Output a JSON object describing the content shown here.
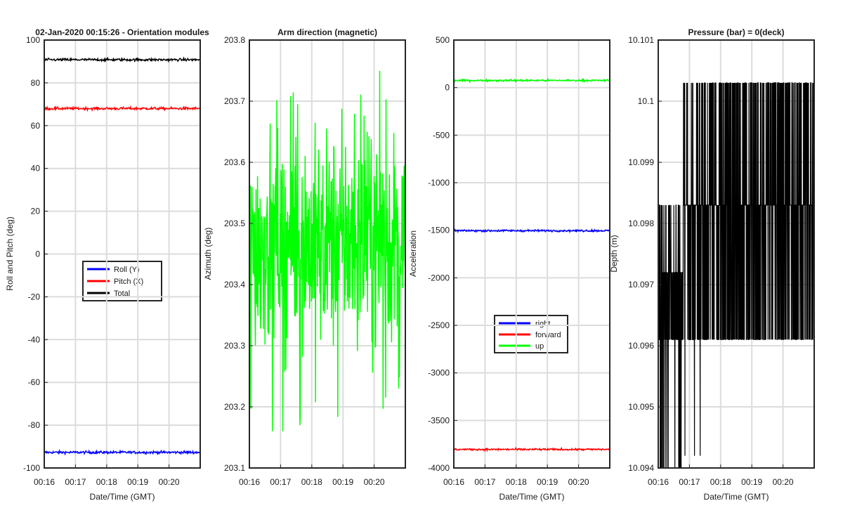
{
  "chart_data": [
    {
      "type": "line",
      "title": "02-Jan-2020 00:15:26 - Orientation modules",
      "xlabel": "Date/Time (GMT)",
      "ylabel": "Roll and Pitch (deg)",
      "x_range_minutes": [
        16.0,
        21.0
      ],
      "ylim": [
        -100,
        100
      ],
      "yticks": [
        -100,
        -80,
        -60,
        -40,
        -20,
        0,
        20,
        40,
        60,
        80,
        100
      ],
      "xtick_labels": [
        "00:16",
        "00:17",
        "00:18",
        "00:19",
        "00:20"
      ],
      "grid": true,
      "legend_position": "center",
      "series": [
        {
          "name": "Roll (Y)",
          "color": "#0000ff",
          "value": -92.7,
          "noise": 0.3
        },
        {
          "name": "Pitch (X)",
          "color": "#ff0000",
          "value": 68.0,
          "noise": 0.3
        },
        {
          "name": "Total",
          "color": "#000000",
          "value": 90.8,
          "noise": 0.3
        }
      ]
    },
    {
      "type": "line",
      "title": "Arm direction (magnetic)",
      "xlabel": "",
      "ylabel": "Azimuth (deg)",
      "x_range_minutes": [
        16.0,
        21.0
      ],
      "ylim": [
        203.1,
        203.8
      ],
      "yticks": [
        203.1,
        203.2,
        203.3,
        203.4,
        203.5,
        203.6,
        203.7,
        203.8
      ],
      "xtick_labels": [
        "00:16",
        "00:17",
        "00:18",
        "00:19",
        "00:20"
      ],
      "grid": true,
      "series": [
        {
          "name": "",
          "color": "#00ff00",
          "mean": 203.47,
          "range": [
            203.16,
            203.8
          ]
        }
      ]
    },
    {
      "type": "line",
      "title": "",
      "xlabel": "Date/Time (GMT)",
      "ylabel": "Acceleration",
      "x_range_minutes": [
        16.0,
        21.0
      ],
      "ylim": [
        -4000,
        500
      ],
      "yticks": [
        -4000,
        -3500,
        -3000,
        -2500,
        -2000,
        -1500,
        -1000,
        -500,
        0,
        500
      ],
      "xtick_labels": [
        "00:16",
        "00:17",
        "00:18",
        "00:19",
        "00:20"
      ],
      "grid": true,
      "legend_position": "lower-center",
      "series": [
        {
          "name": "right",
          "color": "#0000ff",
          "value": -1505,
          "noise": 5
        },
        {
          "name": "forward",
          "color": "#ff0000",
          "value": -3805,
          "noise": 5
        },
        {
          "name": "up",
          "color": "#00ff00",
          "value": 75,
          "noise": 5
        }
      ]
    },
    {
      "type": "line",
      "title": "Pressure (bar) = 0(deck)",
      "xlabel": "Date/Time (GMT)",
      "ylabel": "Depth (m)",
      "x_range_minutes": [
        16.0,
        21.0
      ],
      "ylim": [
        10.094,
        10.101
      ],
      "yticks": [
        10.094,
        10.095,
        10.096,
        10.097,
        10.098,
        10.099,
        10.1,
        10.101
      ],
      "ytick_labels": [
        "10.094",
        "10.095",
        "10.096",
        "10.097",
        "10.098",
        "10.099",
        "10.1",
        "10.101"
      ],
      "xtick_labels": [
        "00:16",
        "00:17",
        "00:18",
        "00:19",
        "00:20"
      ],
      "grid": true,
      "series": [
        {
          "name": "",
          "color": "#000000",
          "levels": [
            10.0961,
            10.0972,
            10.0983,
            10.1003
          ],
          "dips_to": 10.094
        }
      ]
    }
  ]
}
